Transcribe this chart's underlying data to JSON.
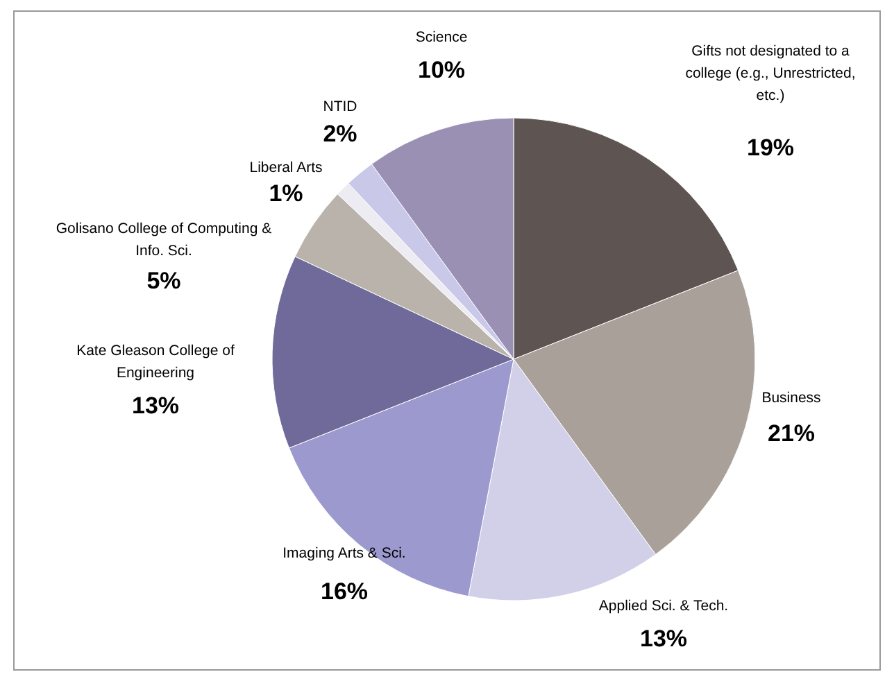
{
  "chart_data": {
    "type": "pie",
    "categories": [
      "Gifts not designated to a college (e.g., Unrestricted, etc.)",
      "Business",
      "Applied Sci. & Tech.",
      "Imaging Arts & Sci.",
      "Kate Gleason College of Engineering",
      "Golisano College of Computing & Info. Sci.",
      "Liberal Arts",
      "NTID",
      "Science"
    ],
    "values": [
      19,
      21,
      13,
      16,
      13,
      5,
      1,
      2,
      10
    ],
    "value_labels": [
      "19%",
      "21%",
      "13%",
      "16%",
      "13%",
      "5%",
      "1%",
      "2%",
      "10%"
    ],
    "colors": [
      "#5e5552",
      "#aaa09a",
      "#d2d0e8",
      "#9b99cd",
      "#6f6a99",
      "#b9b3ac",
      "#ececf2",
      "#c9c8e8",
      "#9a90b4"
    ]
  }
}
